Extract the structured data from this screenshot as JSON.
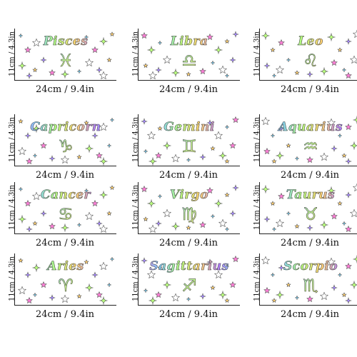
{
  "dimensions": {
    "width_label": "24cm / 9.4in",
    "height_label": "11cm / 4.3in"
  },
  "tiles": [
    {
      "name": "Pisces",
      "symbol": "♓",
      "icon": "pisces-icon"
    },
    {
      "name": "Libra",
      "symbol": "♎",
      "icon": "libra-icon"
    },
    {
      "name": "Leo",
      "symbol": "♌",
      "icon": "leo-icon"
    },
    {
      "name": "Capricorn",
      "symbol": "♑",
      "icon": "capricorn-icon"
    },
    {
      "name": "Gemini",
      "symbol": "♊",
      "icon": "gemini-icon"
    },
    {
      "name": "Aquarius",
      "symbol": "♒",
      "icon": "aquarius-icon"
    },
    {
      "name": "Cancer",
      "symbol": "♋",
      "icon": "cancer-icon"
    },
    {
      "name": "Virgo",
      "symbol": "♍",
      "icon": "virgo-icon"
    },
    {
      "name": "Taurus",
      "symbol": "♉",
      "icon": "taurus-icon"
    },
    {
      "name": "Aries",
      "symbol": "♈",
      "icon": "aries-icon"
    },
    {
      "name": "Sagittarius",
      "symbol": "♐",
      "icon": "sagittarius-icon"
    },
    {
      "name": "Scorpio",
      "symbol": "♏",
      "icon": "scorpio-icon"
    }
  ]
}
